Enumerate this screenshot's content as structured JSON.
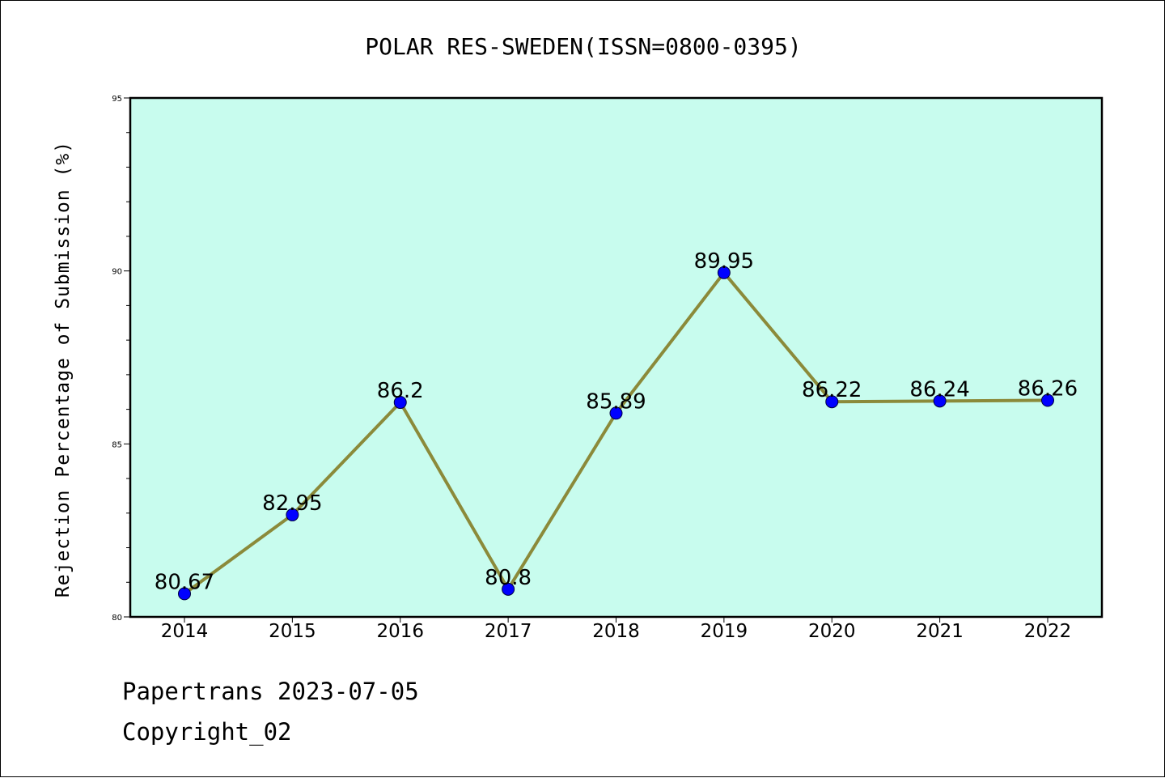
{
  "chart_data": {
    "type": "line",
    "title": "POLAR RES-SWEDEN(ISSN=0800-0395)",
    "xlabel": "",
    "ylabel": "Rejection Percentage of Submission (%)",
    "categories": [
      "2014",
      "2015",
      "2016",
      "2017",
      "2018",
      "2019",
      "2020",
      "2021",
      "2022"
    ],
    "series": [
      {
        "values": [
          80.67,
          82.95,
          86.2,
          80.8,
          85.89,
          89.95,
          86.22,
          86.24,
          86.26
        ],
        "data_labels": [
          "80.67",
          "82.95",
          "86.2",
          "80.8",
          "85.89",
          "89.95",
          "86.22",
          "86.24",
          "86.26"
        ]
      }
    ],
    "ylim": [
      80,
      95
    ],
    "yticks": [
      "80",
      "85",
      "90",
      "95"
    ],
    "grid": false,
    "colors": {
      "plot_background": "#c8fcee",
      "line": "#8b8a3a",
      "marker": "#0000ff"
    }
  },
  "footer": {
    "line1": "Papertrans 2023-07-05",
    "line2": "Copyright_02"
  }
}
